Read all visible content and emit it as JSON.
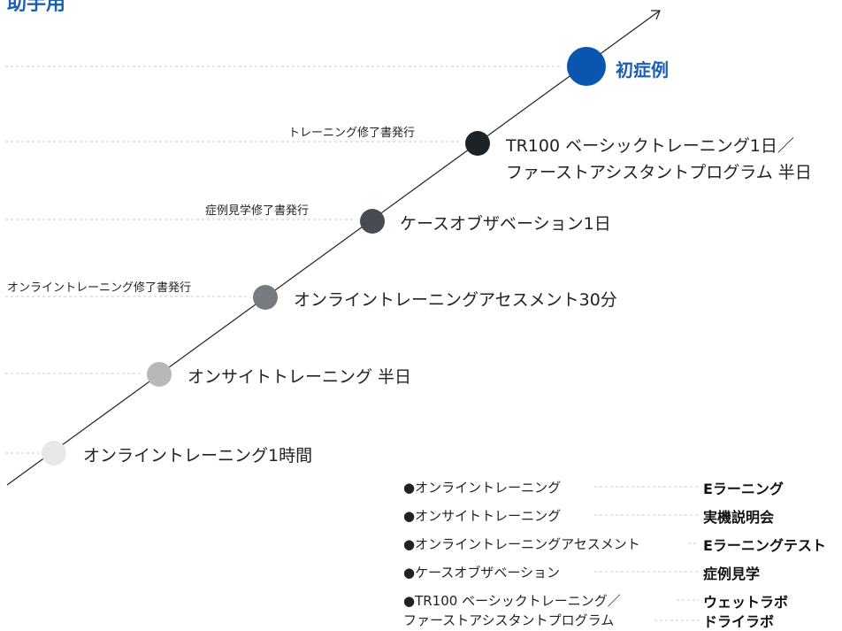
{
  "title": "助手用",
  "steps": [
    {
      "label": "初症例",
      "caption": ""
    },
    {
      "label_lines": [
        "TR100 ベーシックトレーニング1日／",
        "ファーストアシスタントプログラム 半日"
      ],
      "caption": "トレーニング修了書発行"
    },
    {
      "label": "ケースオブザベーション1日",
      "caption": "症例見学修了書発行"
    },
    {
      "label": "オンライントレーニングアセスメント30分",
      "caption": "オンライントレーニング修了書発行"
    },
    {
      "label": "オンサイトトレーニング 半日",
      "caption": ""
    },
    {
      "label": "オンライントレーニング1時間",
      "caption": ""
    }
  ],
  "colors": {
    "step_first": "#0a55b0",
    "step_2": "#1d2227",
    "step_3": "#474c52",
    "step_4": "#777a7e",
    "step_5": "#b6b8ba",
    "step_6": "#e6e7e8",
    "title": "#1a5fb4"
  },
  "legend": [
    {
      "left": "●オンライントレーニング",
      "right": "Eラーニング"
    },
    {
      "left": "●オンサイトトレーニング",
      "right": "実機説明会"
    },
    {
      "left": "●オンライントレーニングアセスメント",
      "right": "Eラーニングテスト"
    },
    {
      "left": "●ケースオブザベーション",
      "right": "症例見学"
    },
    {
      "left": "●TR100 ベーシックトレーニング／",
      "right": "ウェットラボ"
    },
    {
      "left": "ファーストアシスタントプログラム",
      "right": "ドライラボ"
    }
  ]
}
